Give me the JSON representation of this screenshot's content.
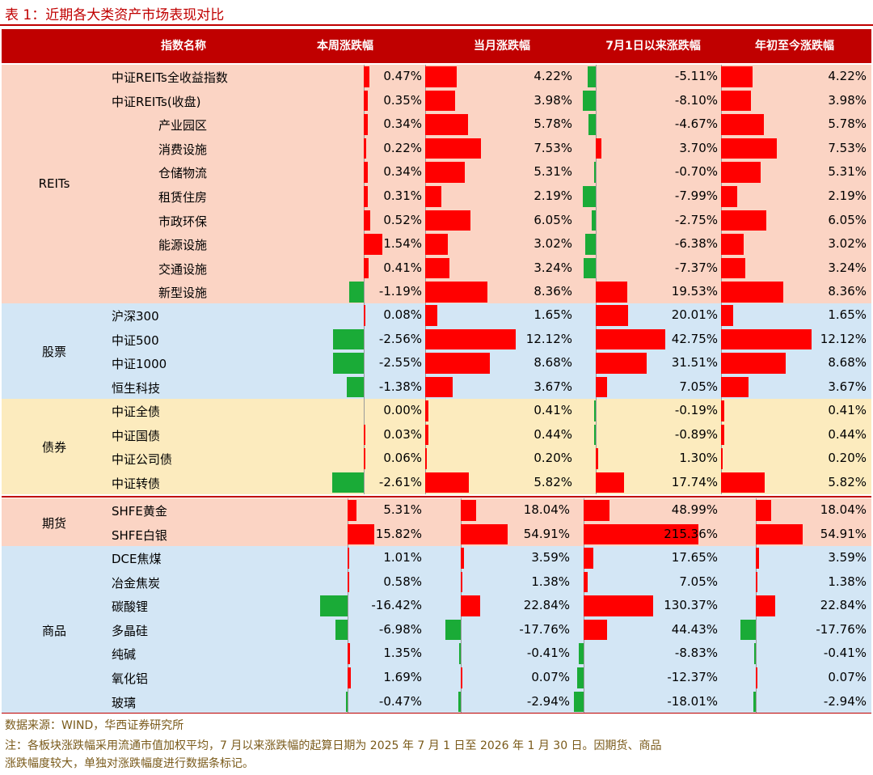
{
  "title": "表 1：近期各大类资产市场表现对比",
  "headers": [
    "指数名称",
    "本周涨跌幅",
    "当月涨跌幅",
    "7月1日以来涨跌幅",
    "年初至今涨跌幅"
  ],
  "colors": {
    "pos": "#ff0000",
    "neg": "#1aab37",
    "header": "#c00000"
  },
  "sections": [
    {
      "category": "REITs",
      "bg": "#fbd4c4",
      "rows": [
        {
          "name": "中证REITs全收益指数",
          "indent": false,
          "week": "0.47%",
          "month": "4.22%",
          "since": "-5.11%",
          "ytd": "4.22%"
        },
        {
          "name": "中证REITs(收盘)",
          "indent": false,
          "week": "0.35%",
          "month": "3.98%",
          "since": "-8.10%",
          "ytd": "3.98%"
        },
        {
          "name": "产业园区",
          "indent": true,
          "week": "0.34%",
          "month": "5.78%",
          "since": "-4.67%",
          "ytd": "5.78%"
        },
        {
          "name": "消费设施",
          "indent": true,
          "week": "0.22%",
          "month": "7.53%",
          "since": "3.70%",
          "ytd": "7.53%"
        },
        {
          "name": "仓储物流",
          "indent": true,
          "week": "0.34%",
          "month": "5.31%",
          "since": "-0.70%",
          "ytd": "5.31%"
        },
        {
          "name": "租赁住房",
          "indent": true,
          "week": "0.31%",
          "month": "2.19%",
          "since": "-7.99%",
          "ytd": "2.19%"
        },
        {
          "name": "市政环保",
          "indent": true,
          "week": "0.52%",
          "month": "6.05%",
          "since": "-2.75%",
          "ytd": "6.05%"
        },
        {
          "name": "能源设施",
          "indent": true,
          "week": "1.54%",
          "month": "3.02%",
          "since": "-6.38%",
          "ytd": "3.02%"
        },
        {
          "name": "交通设施",
          "indent": true,
          "week": "0.41%",
          "month": "3.24%",
          "since": "-7.37%",
          "ytd": "3.24%"
        },
        {
          "name": "新型设施",
          "indent": true,
          "week": "-1.19%",
          "month": "8.36%",
          "since": "19.53%",
          "ytd": "8.36%"
        }
      ]
    },
    {
      "category": "股票",
      "bg": "#d3e6f5",
      "rows": [
        {
          "name": "沪深300",
          "indent": false,
          "week": "0.08%",
          "month": "1.65%",
          "since": "20.01%",
          "ytd": "1.65%"
        },
        {
          "name": "中证500",
          "indent": false,
          "week": "-2.56%",
          "month": "12.12%",
          "since": "42.75%",
          "ytd": "12.12%"
        },
        {
          "name": "中证1000",
          "indent": false,
          "week": "-2.55%",
          "month": "8.68%",
          "since": "31.51%",
          "ytd": "8.68%"
        },
        {
          "name": "恒生科技",
          "indent": false,
          "week": "-1.38%",
          "month": "3.67%",
          "since": "7.05%",
          "ytd": "3.67%"
        }
      ]
    },
    {
      "category": "债券",
      "bg": "#fcebbe",
      "rows": [
        {
          "name": "中证全债",
          "indent": false,
          "week": "0.00%",
          "month": "0.41%",
          "since": "-0.19%",
          "ytd": "0.41%"
        },
        {
          "name": "中证国债",
          "indent": false,
          "week": "0.03%",
          "month": "0.44%",
          "since": "-0.89%",
          "ytd": "0.44%"
        },
        {
          "name": "中证公司债",
          "indent": false,
          "week": "0.06%",
          "month": "0.20%",
          "since": "1.30%",
          "ytd": "0.20%"
        },
        {
          "name": "中证转债",
          "indent": false,
          "week": "-2.61%",
          "month": "5.82%",
          "since": "17.74%",
          "ytd": "5.82%"
        }
      ]
    },
    {
      "category": "期货",
      "bg": "#fbd4c4",
      "rows": [
        {
          "name": "SHFE黄金",
          "indent": false,
          "week": "5.31%",
          "month": "18.04%",
          "since": "48.99%",
          "ytd": "18.04%"
        },
        {
          "name": "SHFE白银",
          "indent": false,
          "week": "15.82%",
          "month": "54.91%",
          "since": "215.36%",
          "ytd": "54.91%"
        }
      ]
    },
    {
      "category": "商品",
      "bg": "#d3e6f5",
      "rows": [
        {
          "name": "DCE焦煤",
          "indent": false,
          "week": "1.01%",
          "month": "3.59%",
          "since": "17.65%",
          "ytd": "3.59%"
        },
        {
          "name": "冶金焦炭",
          "indent": false,
          "week": "0.58%",
          "month": "1.38%",
          "since": "7.05%",
          "ytd": "1.38%"
        },
        {
          "name": "碳酸锂",
          "indent": false,
          "week": "-16.42%",
          "month": "22.84%",
          "since": "130.37%",
          "ytd": "22.84%"
        },
        {
          "name": "多晶硅",
          "indent": false,
          "week": "-6.98%",
          "month": "-17.76%",
          "since": "44.43%",
          "ytd": "-17.76%"
        },
        {
          "name": "纯碱",
          "indent": false,
          "week": "1.35%",
          "month": "-0.41%",
          "since": "-8.83%",
          "ytd": "-0.41%"
        },
        {
          "name": "氧化铝",
          "indent": false,
          "week": "1.69%",
          "month": "0.07%",
          "since": "-12.37%",
          "ytd": "0.07%"
        },
        {
          "name": "玻璃",
          "indent": false,
          "week": "-0.47%",
          "month": "-2.94%",
          "since": "-18.01%",
          "ytd": "-2.94%"
        }
      ]
    }
  ],
  "footer": {
    "source": "数据来源：WIND，华西证券研究所",
    "note1": "注：各板块涨跌幅采用流通市值加权平均，7 月以来涨跌幅的起算日期为 2025 年 7 月 1 日至 2026 年 1 月 30 日。因期货、商品",
    "note2": "涨跌幅度较大，单独对涨跌幅度进行数据条标记。"
  }
}
